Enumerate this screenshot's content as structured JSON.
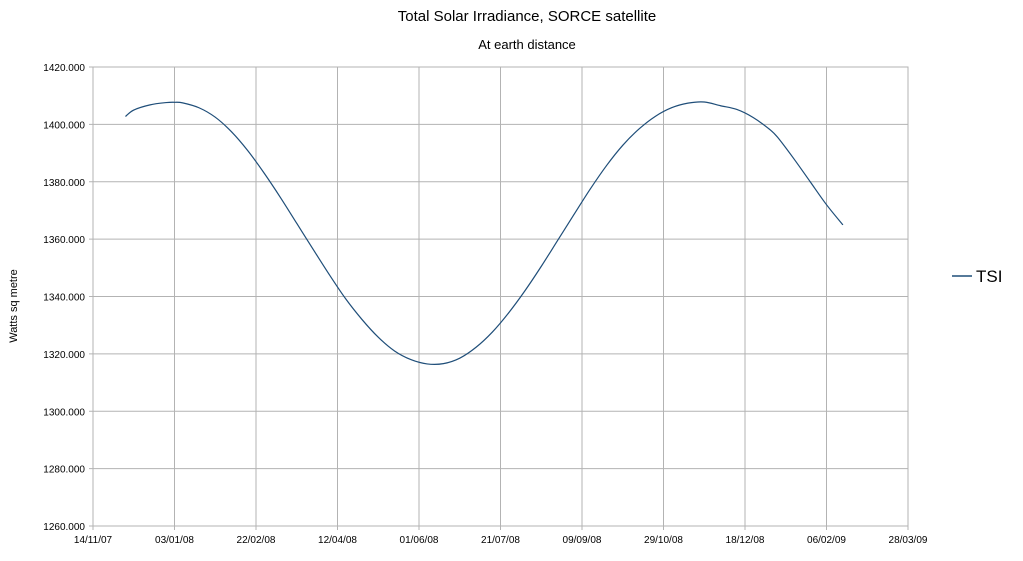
{
  "chart_data": {
    "type": "line",
    "title": "Total Solar Irradiance, SORCE satellite",
    "subtitle": "At earth distance",
    "xlabel": "",
    "ylabel": "Watts sq metre",
    "ylim": [
      1260,
      1420
    ],
    "xlim": [
      "2007-11-14",
      "2009-03-28"
    ],
    "x_ticks": [
      "14/11/07",
      "03/01/08",
      "22/02/08",
      "12/04/08",
      "01/06/08",
      "21/07/08",
      "09/09/08",
      "29/10/08",
      "18/12/08",
      "06/02/09",
      "28/03/09"
    ],
    "y_ticks": [
      "1260.000",
      "1280.000",
      "1300.000",
      "1320.000",
      "1340.000",
      "1360.000",
      "1380.000",
      "1400.000",
      "1420.000"
    ],
    "grid": true,
    "legend_position": "right",
    "color": "#1f4e79",
    "series": [
      {
        "name": "TSI",
        "x": [
          "2007-12-04",
          "2007-12-09",
          "2007-12-19",
          "2007-12-29",
          "2008-01-03",
          "2008-01-08",
          "2008-01-18",
          "2008-01-28",
          "2008-02-07",
          "2008-02-17",
          "2008-02-27",
          "2008-03-08",
          "2008-03-18",
          "2008-03-28",
          "2008-04-07",
          "2008-04-17",
          "2008-04-27",
          "2008-05-07",
          "2008-05-17",
          "2008-05-27",
          "2008-06-06",
          "2008-06-16",
          "2008-06-26",
          "2008-07-06",
          "2008-07-16",
          "2008-07-26",
          "2008-08-05",
          "2008-08-15",
          "2008-08-25",
          "2008-09-04",
          "2008-09-14",
          "2008-09-24",
          "2008-10-04",
          "2008-10-14",
          "2008-10-24",
          "2008-11-03",
          "2008-11-13",
          "2008-11-23",
          "2008-12-03",
          "2008-12-13",
          "2008-12-23",
          "2009-01-02",
          "2009-01-07",
          "2009-01-17",
          "2009-01-27",
          "2009-02-06",
          "2009-02-16"
        ],
        "y": [
          1402.8,
          1405.0,
          1406.8,
          1407.6,
          1407.7,
          1407.5,
          1405.8,
          1402.5,
          1397.4,
          1390.8,
          1383.0,
          1374.5,
          1365.5,
          1356.5,
          1347.6,
          1339.2,
          1332.0,
          1325.8,
          1321.0,
          1318.0,
          1316.5,
          1316.6,
          1318.5,
          1322.3,
          1327.6,
          1334.3,
          1342.0,
          1350.5,
          1359.5,
          1368.5,
          1377.4,
          1385.6,
          1392.7,
          1398.4,
          1402.8,
          1405.8,
          1407.4,
          1407.8,
          1406.5,
          1405.2,
          1402.4,
          1398.3,
          1395.5,
          1388.0,
          1380.0,
          1372.0,
          1365.0
        ]
      }
    ]
  }
}
